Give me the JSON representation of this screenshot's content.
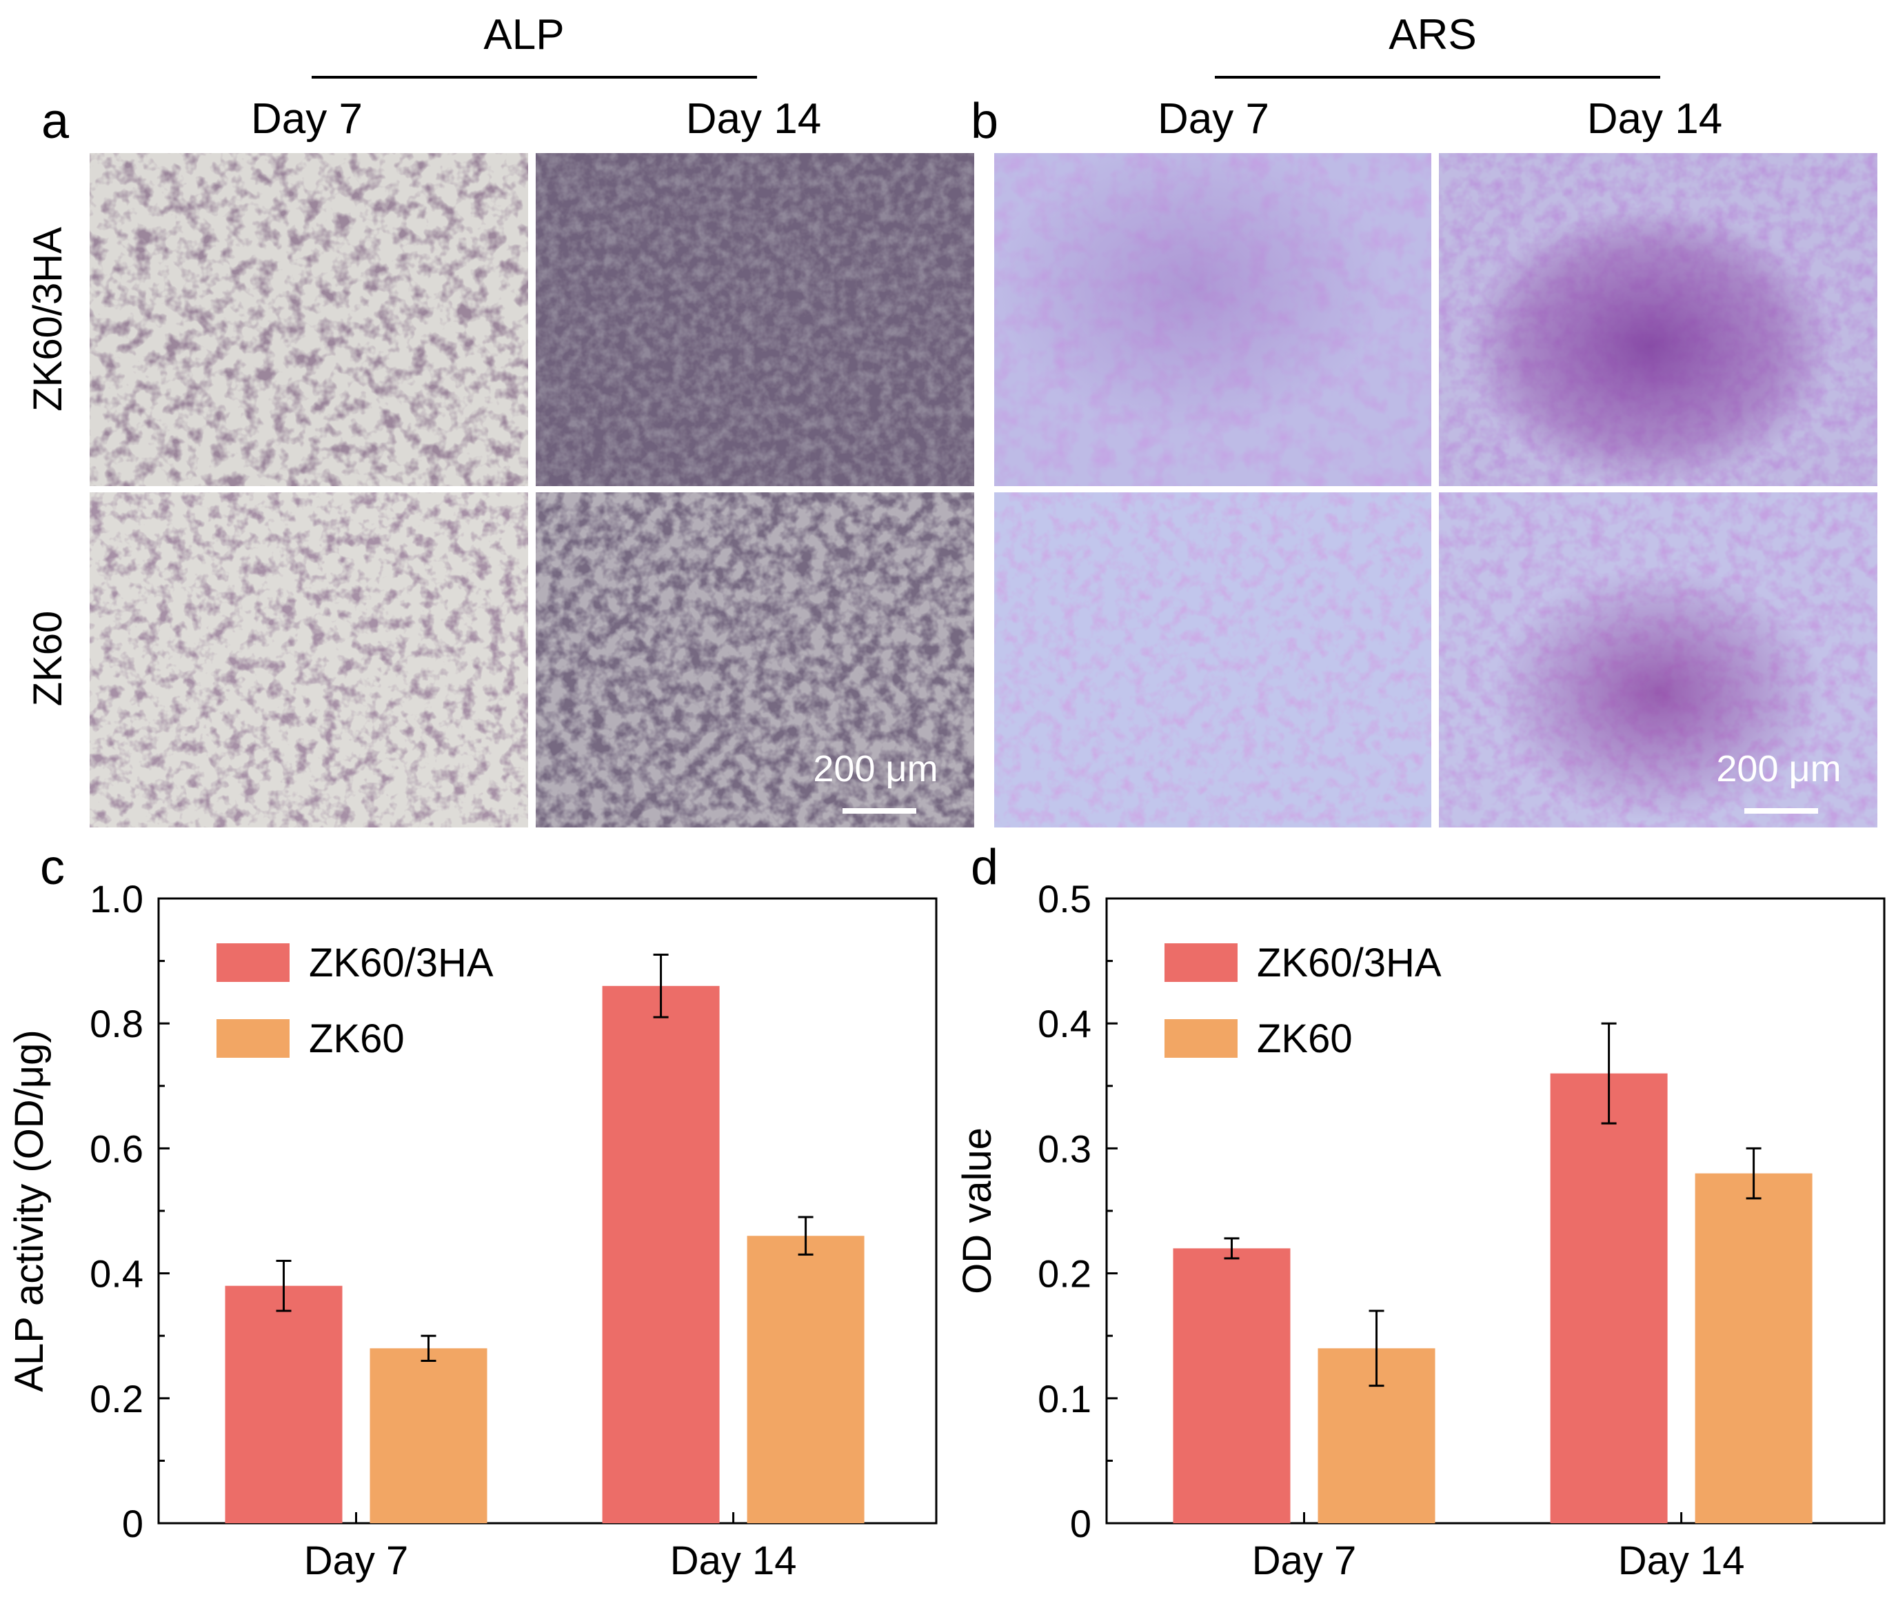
{
  "panels": {
    "a": {
      "letter": "a",
      "title": "ALP",
      "columns": [
        "Day 7",
        "Day 14"
      ],
      "rows": [
        "ZK60/3HA",
        "ZK60"
      ],
      "scale_bar": "200 μm"
    },
    "b": {
      "letter": "b",
      "title": "ARS",
      "columns": [
        "Day 7",
        "Day 14"
      ],
      "scale_bar": "200 μm"
    },
    "c": {
      "letter": "c"
    },
    "d": {
      "letter": "d"
    }
  },
  "colors": {
    "zk60_3ha": "#ec6d68",
    "zk60": "#f2a664",
    "alp_stain_light": "#d8d6d2",
    "alp_stain_dark": "#2e2433",
    "ars_stain_light": "#b9b6e4",
    "ars_stain_dark": "#7a3c9a"
  },
  "chart_data": [
    {
      "type": "bar",
      "categories": [
        "Day 7",
        "Day 14"
      ],
      "series": [
        {
          "name": "ZK60/3HA",
          "values": [
            0.38,
            0.86
          ],
          "errors": [
            0.04,
            0.05
          ]
        },
        {
          "name": "ZK60",
          "values": [
            0.28,
            0.46
          ],
          "errors": [
            0.02,
            0.03
          ]
        }
      ],
      "ylabel": "ALP activity (OD/μg)",
      "ylim": [
        0,
        1.0
      ],
      "yticks": [
        0,
        0.2,
        0.4,
        0.6,
        0.8,
        1.0
      ],
      "ytick_labels": [
        "0",
        "0.2",
        "0.4",
        "0.6",
        "0.8",
        "1.0"
      ],
      "legend_position": "top-left"
    },
    {
      "type": "bar",
      "categories": [
        "Day 7",
        "Day 14"
      ],
      "series": [
        {
          "name": "ZK60/3HA",
          "values": [
            0.22,
            0.36
          ],
          "errors": [
            0.008,
            0.04
          ]
        },
        {
          "name": "ZK60",
          "values": [
            0.14,
            0.28
          ],
          "errors": [
            0.03,
            0.02
          ]
        }
      ],
      "ylabel": "OD value",
      "ylim": [
        0,
        0.5
      ],
      "yticks": [
        0,
        0.1,
        0.2,
        0.3,
        0.4,
        0.5
      ],
      "ytick_labels": [
        "0",
        "0.1",
        "0.2",
        "0.3",
        "0.4",
        "0.5"
      ],
      "legend_position": "top-left"
    }
  ]
}
